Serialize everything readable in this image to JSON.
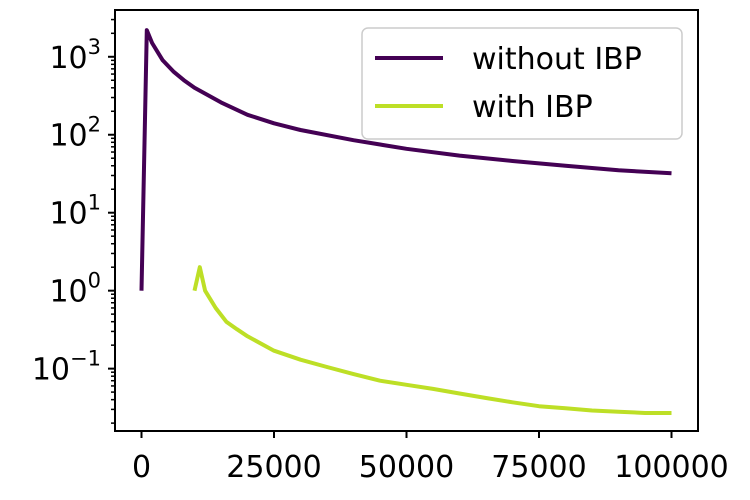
{
  "chart_data": {
    "type": "line",
    "title": "",
    "xlabel": "",
    "ylabel": "",
    "xlim": [
      -5000,
      105000
    ],
    "ylim_log10": [
      -1.8,
      3.6
    ],
    "y_scale": "log",
    "grid": false,
    "legend_position": "top-right",
    "x_ticks": [
      {
        "value": 0,
        "label": "0"
      },
      {
        "value": 25000,
        "label": "25000"
      },
      {
        "value": 50000,
        "label": "50000"
      },
      {
        "value": 75000,
        "label": "75000"
      },
      {
        "value": 100000,
        "label": "100000"
      }
    ],
    "y_ticks": [
      {
        "exp": -1,
        "base": "10",
        "sup": "−1"
      },
      {
        "exp": 0,
        "base": "10",
        "sup": "0"
      },
      {
        "exp": 1,
        "base": "10",
        "sup": "1"
      },
      {
        "exp": 2,
        "base": "10",
        "sup": "2"
      },
      {
        "exp": 3,
        "base": "10",
        "sup": "3"
      }
    ],
    "series": [
      {
        "name": "without IBP",
        "color": "#440154",
        "x": [
          0,
          1000,
          2000,
          4000,
          6000,
          8000,
          10000,
          15000,
          20000,
          25000,
          30000,
          40000,
          50000,
          60000,
          70000,
          80000,
          90000,
          100000
        ],
        "y": [
          1.0,
          2200,
          1500,
          900,
          650,
          500,
          400,
          260,
          180,
          140,
          115,
          85,
          66,
          54,
          46,
          40,
          35,
          32
        ]
      },
      {
        "name": "with IBP",
        "color": "#bddf26",
        "x": [
          10000,
          11000,
          12000,
          14000,
          16000,
          18000,
          20000,
          25000,
          30000,
          35000,
          40000,
          45000,
          50000,
          55000,
          60000,
          65000,
          70000,
          75000,
          80000,
          85000,
          90000,
          95000,
          100000
        ],
        "y": [
          1.0,
          2.0,
          1.0,
          0.6,
          0.4,
          0.32,
          0.26,
          0.17,
          0.13,
          0.105,
          0.085,
          0.07,
          0.062,
          0.055,
          0.048,
          0.042,
          0.037,
          0.033,
          0.031,
          0.029,
          0.028,
          0.027,
          0.027
        ]
      }
    ]
  }
}
